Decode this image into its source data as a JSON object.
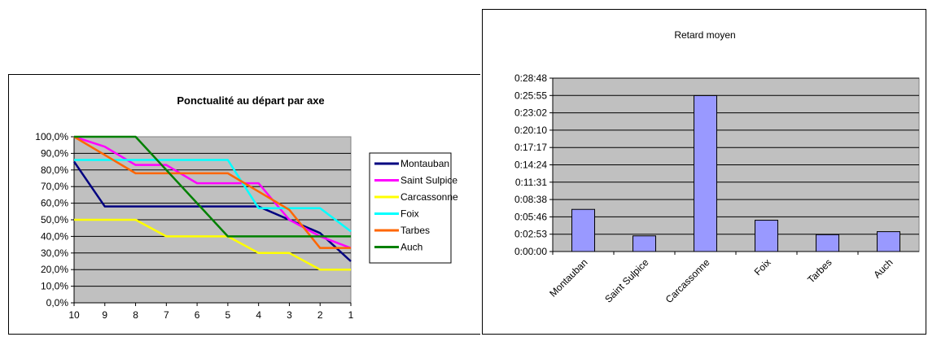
{
  "chart_data": [
    {
      "type": "line",
      "title": "Ponctualité au départ par axe",
      "xlabel": "",
      "ylabel": "",
      "categories": [
        "10",
        "9",
        "8",
        "7",
        "6",
        "5",
        "4",
        "3",
        "2",
        "1"
      ],
      "y_ticks": [
        "100,0%",
        "90,0%",
        "80,0%",
        "70,0%",
        "60,0%",
        "50,0%",
        "40,0%",
        "30,0%",
        "20,0%",
        "10,0%",
        "0,0%"
      ],
      "ylim": [
        0,
        100
      ],
      "grid": true,
      "plot_background": "#c0c0c0",
      "legend_position": "right",
      "series": [
        {
          "name": "Montauban",
          "color": "#000080",
          "values": [
            85,
            58,
            58,
            58,
            58,
            58,
            58,
            50,
            42,
            25
          ]
        },
        {
          "name": "Saint Sulpice",
          "color": "#ff00ff",
          "values": [
            100,
            94,
            83,
            83,
            72,
            72,
            72,
            50,
            40,
            33
          ]
        },
        {
          "name": "Carcassonne",
          "color": "#ffff00",
          "values": [
            50,
            50,
            50,
            40,
            40,
            40,
            30,
            30,
            20,
            20
          ]
        },
        {
          "name": "Foix",
          "color": "#00ffff",
          "values": [
            86,
            86,
            86,
            86,
            86,
            86,
            57,
            57,
            57,
            43
          ]
        },
        {
          "name": "Tarbes",
          "color": "#ff6600",
          "values": [
            100,
            89,
            78,
            78,
            78,
            78,
            67,
            56,
            33,
            33
          ]
        },
        {
          "name": "Auch",
          "color": "#008000",
          "values": [
            100,
            100,
            100,
            80,
            60,
            40,
            40,
            40,
            40,
            40
          ]
        }
      ]
    },
    {
      "type": "bar",
      "title": "Retard moyen",
      "xlabel": "",
      "ylabel": "",
      "categories": [
        "Montauban",
        "Saint Sulpice",
        "Carcassonne",
        "Foix",
        "Tarbes",
        "Auch"
      ],
      "values": [
        7.0,
        2.6,
        25.9,
        5.2,
        2.8,
        3.3
      ],
      "value_unit": "minutes",
      "y_ticks": [
        "0:28:48",
        "0:25:55",
        "0:23:02",
        "0:20:10",
        "0:17:17",
        "0:14:24",
        "0:11:31",
        "0:08:38",
        "0:05:46",
        "0:02:53",
        "0:00:00"
      ],
      "ylim": [
        0,
        28.8
      ],
      "grid": true,
      "plot_background": "#c0c0c0",
      "bar_color": "#9999ff"
    }
  ]
}
